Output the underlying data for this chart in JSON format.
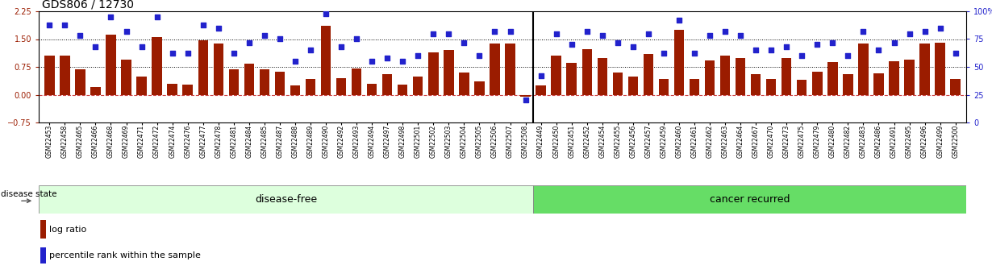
{
  "title": "GDS806 / 12730",
  "samples": [
    "GSM22453",
    "GSM22458",
    "GSM22465",
    "GSM22466",
    "GSM22468",
    "GSM22469",
    "GSM22471",
    "GSM22472",
    "GSM22474",
    "GSM22476",
    "GSM22477",
    "GSM22478",
    "GSM22481",
    "GSM22484",
    "GSM22485",
    "GSM22487",
    "GSM22488",
    "GSM22489",
    "GSM22490",
    "GSM22492",
    "GSM22493",
    "GSM22494",
    "GSM22497",
    "GSM22498",
    "GSM22501",
    "GSM22502",
    "GSM22503",
    "GSM22504",
    "GSM22505",
    "GSM22506",
    "GSM22507",
    "GSM22508",
    "GSM22449",
    "GSM22450",
    "GSM22451",
    "GSM22452",
    "GSM22454",
    "GSM22455",
    "GSM22456",
    "GSM22457",
    "GSM22459",
    "GSM22460",
    "GSM22461",
    "GSM22462",
    "GSM22463",
    "GSM22464",
    "GSM22467",
    "GSM22470",
    "GSM22473",
    "GSM22475",
    "GSM22479",
    "GSM22480",
    "GSM22482",
    "GSM22483",
    "GSM22486",
    "GSM22491",
    "GSM22495",
    "GSM22496",
    "GSM22499",
    "GSM22500"
  ],
  "log_ratio": [
    1.05,
    1.05,
    0.68,
    0.2,
    1.62,
    0.95,
    0.5,
    1.55,
    0.3,
    0.28,
    1.47,
    1.38,
    0.68,
    0.83,
    0.68,
    0.62,
    0.25,
    0.42,
    1.85,
    0.45,
    0.7,
    0.3,
    0.55,
    0.28,
    0.48,
    1.15,
    1.2,
    0.6,
    0.35,
    1.38,
    1.38,
    -0.05,
    0.25,
    1.05,
    0.85,
    1.22,
    0.98,
    0.6,
    0.5,
    1.1,
    0.42,
    1.75,
    0.42,
    0.92,
    1.05,
    0.98,
    0.55,
    0.42,
    0.98,
    0.4,
    0.62,
    0.88,
    0.55,
    1.38,
    0.58,
    0.9,
    0.95,
    1.38,
    1.4,
    0.42
  ],
  "percentile": [
    88,
    88,
    78,
    68,
    95,
    82,
    68,
    95,
    62,
    62,
    88,
    85,
    62,
    72,
    78,
    75,
    55,
    65,
    98,
    68,
    75,
    55,
    58,
    55,
    60,
    80,
    80,
    72,
    60,
    82,
    82,
    20,
    42,
    80,
    70,
    82,
    78,
    72,
    68,
    80,
    62,
    92,
    62,
    78,
    82,
    78,
    65,
    65,
    68,
    60,
    70,
    72,
    60,
    82,
    65,
    72,
    80,
    82,
    85,
    62
  ],
  "disease_free_count": 32,
  "bar_color": "#9B1C00",
  "dot_color": "#2222CC",
  "bg_color": "#FFFFFF",
  "ylim_left": [
    -0.75,
    2.25
  ],
  "ylim_right": [
    0,
    100
  ],
  "yticks_left": [
    -0.75,
    0.0,
    0.75,
    1.5,
    2.25
  ],
  "yticks_right": [
    0,
    25,
    50,
    75,
    100
  ],
  "hline_zero_color": "#CC4444",
  "hlines_dotted": [
    0.75,
    1.5
  ],
  "disease_free_color": "#DDFFDD",
  "cancer_recurred_color": "#66DD66",
  "group_label_disease_free": "disease-free",
  "group_label_cancer": "cancer recurred",
  "disease_state_label": "disease state",
  "legend_bar_label": "log ratio",
  "legend_dot_label": "percentile rank within the sample",
  "title_fontsize": 10,
  "tick_fontsize": 7,
  "xtick_fontsize": 5.5,
  "label_fontsize": 8,
  "band_fontsize": 9
}
